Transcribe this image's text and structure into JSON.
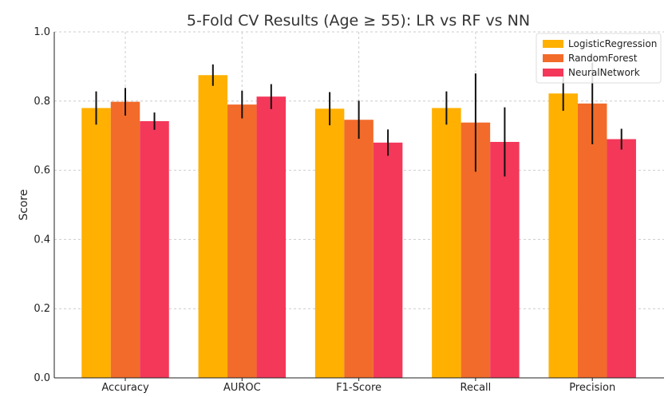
{
  "chart_data": {
    "type": "bar",
    "title": "5-Fold CV Results (Age ≥ 55): LR vs RF vs NN",
    "xlabel": "",
    "ylabel": "Score",
    "ylim": [
      0.0,
      1.0
    ],
    "yticks": [
      "0.0",
      "0.2",
      "0.4",
      "0.6",
      "0.8",
      "1.0"
    ],
    "grid": true,
    "legend_position": "top-right",
    "categories": [
      "Accuracy",
      "AUROC",
      "F1-Score",
      "Recall",
      "Precision"
    ],
    "series": [
      {
        "name": "LogisticRegression",
        "color": "#FFB000",
        "values": [
          0.78,
          0.875,
          0.778,
          0.78,
          0.822
        ],
        "errors": [
          0.048,
          0.031,
          0.048,
          0.048,
          0.05
        ]
      },
      {
        "name": "RandomForest",
        "color": "#F26B2A",
        "values": [
          0.798,
          0.79,
          0.746,
          0.738,
          0.793
        ],
        "errors": [
          0.04,
          0.04,
          0.055,
          0.142,
          0.118
        ]
      },
      {
        "name": "NeuralNetwork",
        "color": "#F4385A",
        "values": [
          0.742,
          0.813,
          0.68,
          0.682,
          0.69
        ],
        "errors": [
          0.025,
          0.036,
          0.038,
          0.1,
          0.03
        ]
      }
    ]
  }
}
